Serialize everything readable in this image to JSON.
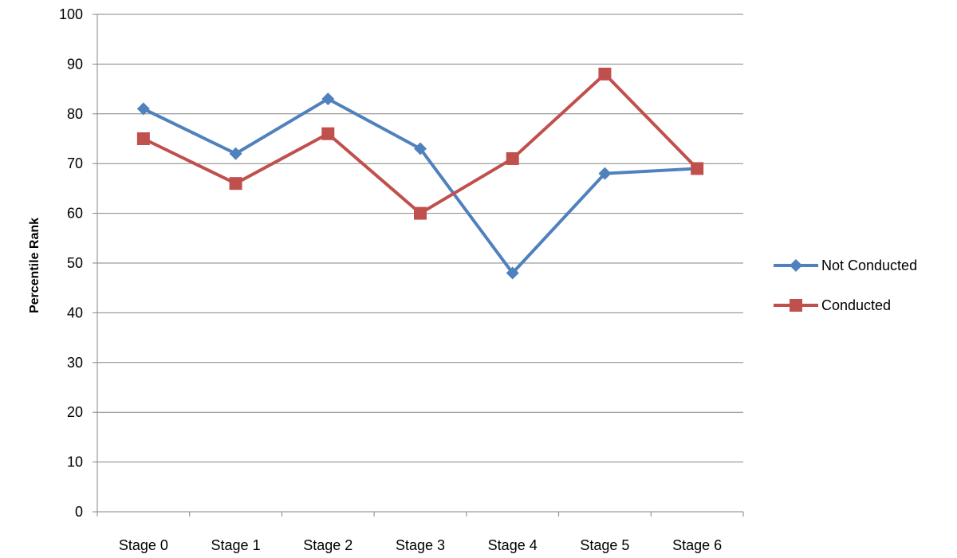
{
  "chart_data": {
    "type": "line",
    "title": "",
    "xlabel": "",
    "ylabel": "Percentile Rank",
    "categories": [
      "Stage 0",
      "Stage 1",
      "Stage 2",
      "Stage 3",
      "Stage 4",
      "Stage 5",
      "Stage 6"
    ],
    "ylim": [
      0,
      100
    ],
    "yticks": [
      "0",
      "10",
      "20",
      "30",
      "40",
      "50",
      "60",
      "70",
      "80",
      "90",
      "100"
    ],
    "grid": "horizontal",
    "legend": "right",
    "series": [
      {
        "name": "Not Conducted",
        "color": "#4F81BD",
        "marker": "diamond",
        "values": [
          81,
          72,
          83,
          73,
          48,
          68,
          69
        ]
      },
      {
        "name": "Conducted",
        "color": "#C0504D",
        "marker": "square",
        "values": [
          75,
          66,
          76,
          60,
          71,
          88,
          69
        ]
      }
    ]
  }
}
